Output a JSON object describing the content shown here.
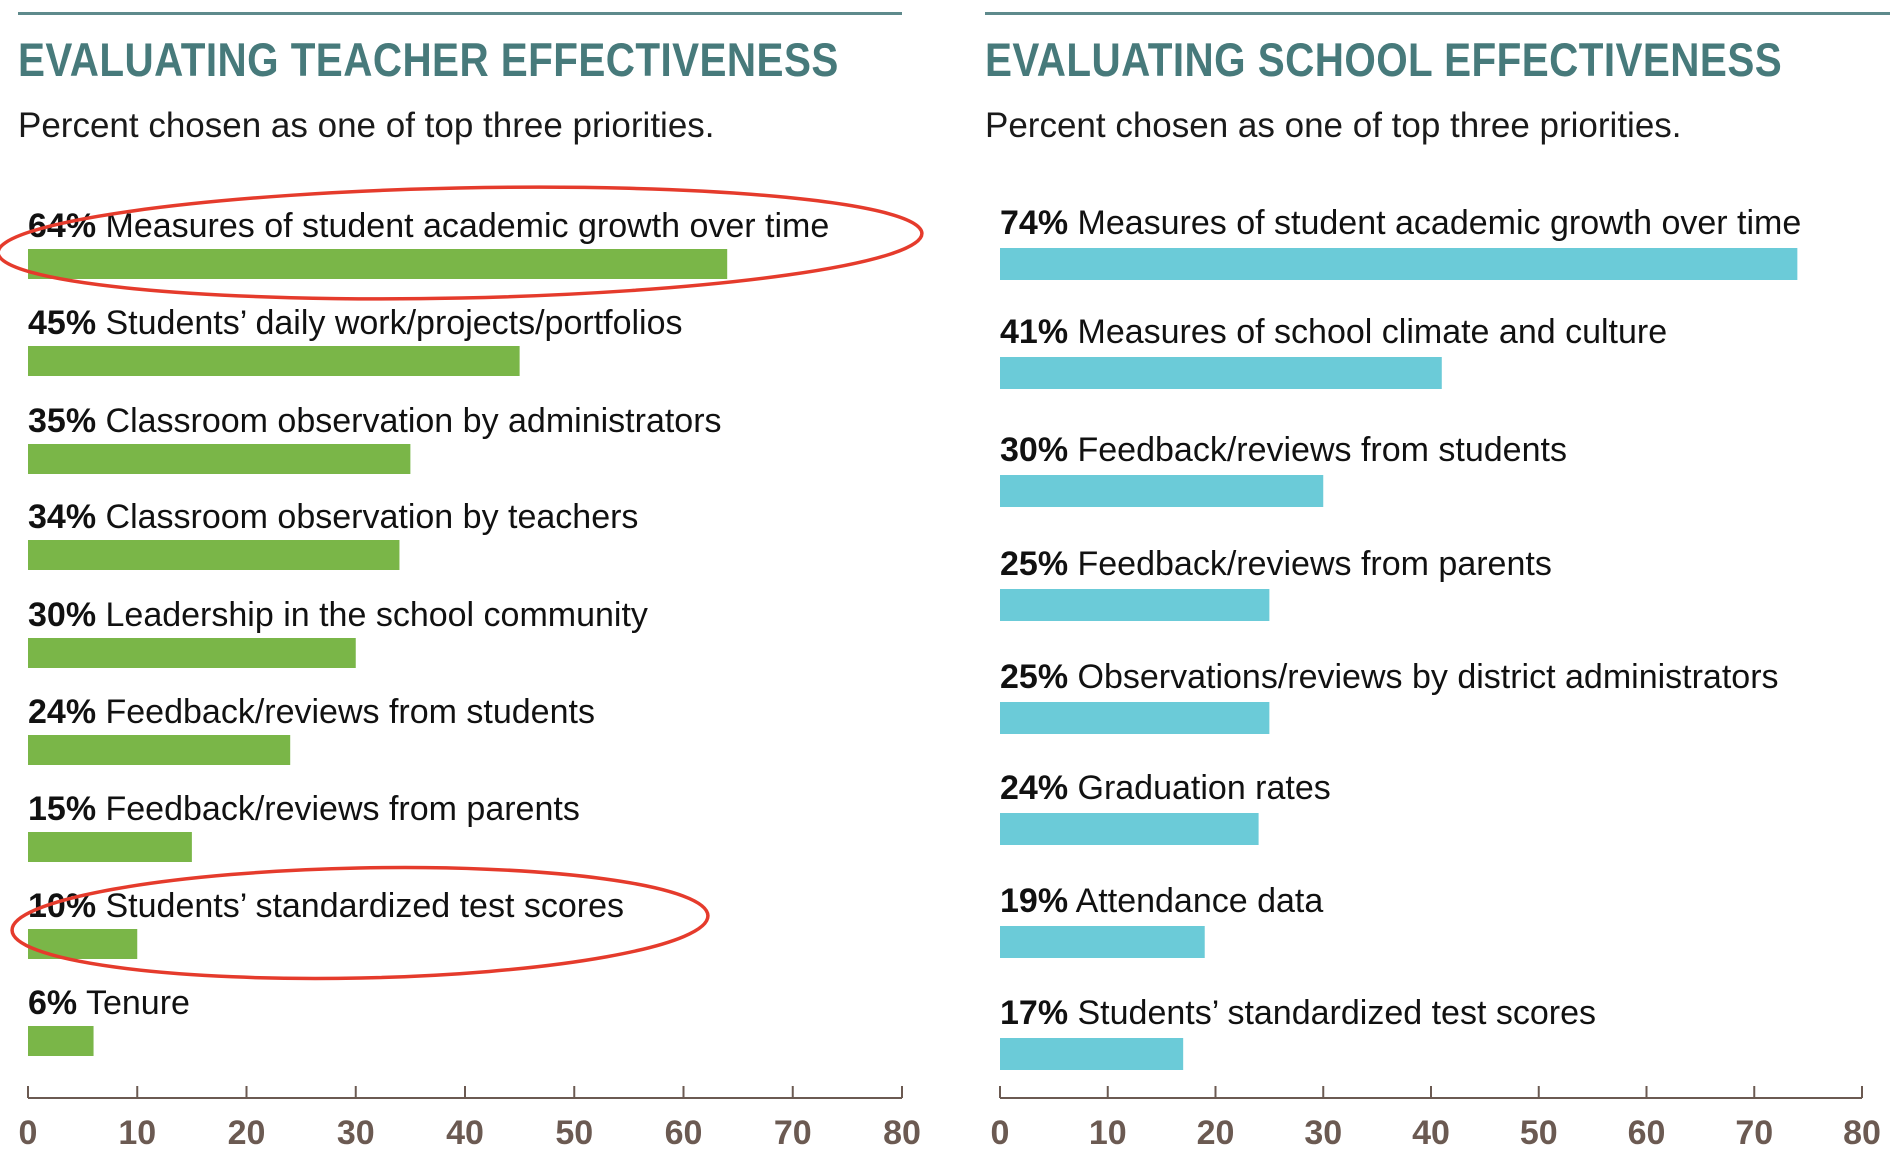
{
  "chart_data": [
    {
      "type": "bar",
      "orientation": "horizontal",
      "title": "EVALUATING TEACHER EFFECTIVENESS",
      "subtitle": "Percent chosen as one of top three priorities.",
      "bar_color": "#7ab648",
      "xlim": [
        0,
        80
      ],
      "xticks": [
        0,
        10,
        20,
        30,
        40,
        50,
        60,
        70,
        80
      ],
      "grid": false,
      "categories": [
        "Measures of student academic growth over time",
        "Students’ daily work/projects/portfolios",
        "Classroom observation by administrators",
        "Classroom observation by teachers",
        "Leadership in the school community",
        "Feedback/reviews from students",
        "Feedback/reviews from parents",
        "Students’ standardized test scores",
        "Tenure"
      ],
      "values": [
        64,
        45,
        35,
        34,
        30,
        24,
        15,
        10,
        6
      ],
      "value_labels": [
        "64%",
        "45%",
        "35%",
        "34%",
        "30%",
        "24%",
        "15%",
        "10%",
        "6%"
      ],
      "highlighted": [
        0,
        7
      ],
      "highlight_color": "#e53b2c"
    },
    {
      "type": "bar",
      "orientation": "horizontal",
      "title": "EVALUATING SCHOOL EFFECTIVENESS",
      "subtitle": "Percent chosen as one of top three priorities.",
      "bar_color": "#6bcbd8",
      "xlim": [
        0,
        80
      ],
      "xticks": [
        0,
        10,
        20,
        30,
        40,
        50,
        60,
        70,
        80
      ],
      "grid": false,
      "categories": [
        "Measures of student academic growth over time",
        "Measures of school climate and culture",
        "Feedback/reviews from students",
        "Feedback/reviews from parents",
        "Observations/reviews by district administrators",
        "Graduation rates",
        "Attendance data",
        "Students’ standardized test scores"
      ],
      "values": [
        74,
        41,
        30,
        25,
        25,
        24,
        19,
        17
      ],
      "value_labels": [
        "74%",
        "41%",
        "30%",
        "25%",
        "25%",
        "24%",
        "19%",
        "17%"
      ],
      "highlighted": []
    }
  ]
}
